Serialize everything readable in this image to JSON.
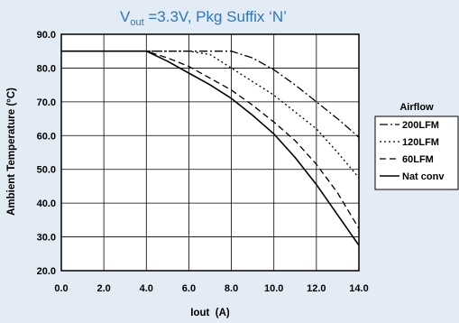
{
  "chart_data": {
    "type": "line",
    "title_main": "V",
    "title_sub": "out",
    "title_rest": " =3.3V, Pkg Suffix ‘N’",
    "xlabel": "Iout  (A)",
    "ylabel": "Ambient Temperature (°C)",
    "xlim": [
      0,
      14
    ],
    "ylim": [
      20,
      90
    ],
    "x_ticks": [
      "0.0",
      "2.0",
      "4.0",
      "6.0",
      "8.0",
      "10.0",
      "12.0",
      "14.0"
    ],
    "y_ticks": [
      "20.0",
      "30.0",
      "40.0",
      "50.0",
      "60.0",
      "70.0",
      "80.0",
      "90.0"
    ],
    "grid": true,
    "legend_title": "Airflow",
    "legend_position": "right",
    "series": [
      {
        "name": "200LFM",
        "style": "dash-dot",
        "x": [
          0,
          4,
          6,
          7,
          8,
          9,
          10,
          11,
          12,
          13,
          14
        ],
        "y": [
          85,
          85,
          85,
          85,
          85,
          83,
          79.5,
          75,
          70,
          65,
          59.5
        ]
      },
      {
        "name": "120LFM",
        "style": "dotted",
        "x": [
          0,
          4,
          6,
          7,
          8,
          9,
          10,
          11,
          12,
          13,
          14
        ],
        "y": [
          85,
          85,
          85,
          84,
          80,
          76,
          72,
          67,
          62,
          55,
          47.5
        ]
      },
      {
        "name": "60LFM",
        "style": "dashed",
        "x": [
          0,
          4,
          5,
          6,
          7,
          8,
          9,
          10,
          11,
          12,
          13,
          14
        ],
        "y": [
          85,
          85,
          83,
          80.5,
          77,
          73.5,
          69,
          64,
          58.5,
          51.5,
          43,
          32.5
        ]
      },
      {
        "name": "Nat conv",
        "style": "solid",
        "x": [
          0,
          4,
          5,
          6,
          7,
          8,
          9,
          10,
          11,
          12,
          13,
          14
        ],
        "y": [
          85,
          85,
          82,
          78.5,
          75,
          71,
          66,
          60.5,
          53.5,
          45.5,
          36.5,
          27.5
        ]
      }
    ]
  }
}
